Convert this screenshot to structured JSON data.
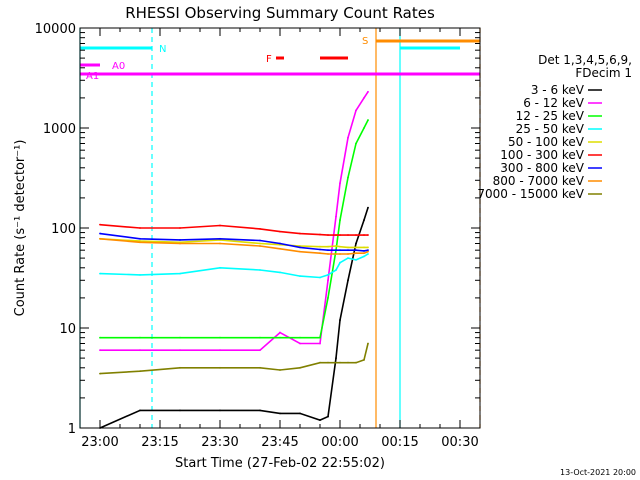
{
  "chart_data": {
    "type": "line",
    "title": "RHESSI Observing Summary Count Rates",
    "xlabel": "Start Time (27-Feb-02 22:55:02)",
    "ylabel": "Count Rate (s⁻¹ detector⁻¹)",
    "yscale": "log",
    "ylim": [
      1,
      10000
    ],
    "xlim": [
      "22:55",
      "00:35"
    ],
    "x_ticks": [
      "23:00",
      "23:15",
      "23:30",
      "23:45",
      "00:00",
      "00:15",
      "00:30"
    ],
    "y_ticks": [
      "1",
      "10",
      "100",
      "1000",
      "10000"
    ],
    "legend_title": [
      "Det 1,3,4,5,6,9,",
      "FDecim 1"
    ],
    "legend_position": "right",
    "timestamp": "13-Oct-2021 20:00",
    "x": [
      "23:00",
      "23:10",
      "23:20",
      "23:30",
      "23:40",
      "23:45",
      "23:50",
      "23:55",
      "23:57",
      "23:59",
      "00:00",
      "00:02",
      "00:04",
      "00:06",
      "00:07"
    ],
    "series": [
      {
        "name": "3 - 6 keV",
        "color": "#000000",
        "values": [
          1,
          1.5,
          1.5,
          1.5,
          1.5,
          1.4,
          1.4,
          1.2,
          1.3,
          5,
          12,
          30,
          70,
          120,
          160
        ]
      },
      {
        "name": "6 - 12 keV",
        "color": "#ff00ff",
        "values": [
          6,
          6,
          6,
          6,
          6,
          9,
          7,
          7,
          30,
          130,
          280,
          800,
          1500,
          2000,
          2300
        ]
      },
      {
        "name": "12 - 25 keV",
        "color": "#00ff00",
        "values": [
          8,
          8,
          8,
          8,
          8,
          8,
          8,
          8,
          20,
          60,
          120,
          320,
          700,
          1000,
          1200
        ]
      },
      {
        "name": "25 - 50 keV",
        "color": "#00ffff",
        "values": [
          35,
          34,
          35,
          40,
          38,
          36,
          33,
          32,
          34,
          38,
          45,
          50,
          48,
          52,
          55
        ]
      },
      {
        "name": "50 - 100 keV",
        "color": "#dddd00",
        "values": [
          78,
          74,
          72,
          76,
          70,
          68,
          66,
          65,
          65,
          66,
          65,
          64,
          64,
          64,
          64
        ]
      },
      {
        "name": "100 - 300 keV",
        "color": "#ff0000",
        "values": [
          108,
          100,
          100,
          106,
          98,
          92,
          88,
          86,
          85,
          85,
          85,
          85,
          85,
          85,
          85
        ]
      },
      {
        "name": "300 - 800 keV",
        "color": "#0000ff",
        "values": [
          88,
          78,
          76,
          78,
          75,
          70,
          64,
          61,
          60,
          60,
          60,
          60,
          60,
          59,
          60
        ]
      },
      {
        "name": "800 - 7000 keV",
        "color": "#ff8c00",
        "values": [
          78,
          72,
          70,
          70,
          66,
          62,
          58,
          56,
          55,
          55,
          55,
          55,
          56,
          56,
          58
        ]
      },
      {
        "name": "7000 - 15000 keV",
        "color": "#808000",
        "values": [
          3.5,
          3.7,
          4,
          4,
          4,
          3.8,
          4,
          4.5,
          4.5,
          4.5,
          4.5,
          4.5,
          4.5,
          4.8,
          7
        ]
      }
    ],
    "annotations": [
      {
        "label": "N",
        "color": "#00ffff",
        "segments": [
          [
            "22:55",
            "23:13"
          ],
          [
            "00:15",
            "00:30"
          ]
        ]
      },
      {
        "label": "A0",
        "color": "#ff00ff",
        "segments": [
          [
            "22:55",
            "23:00"
          ]
        ]
      },
      {
        "label": "A1",
        "color": "#ff00ff",
        "segments": [
          [
            "22:55",
            "00:35"
          ]
        ]
      },
      {
        "label": "F",
        "color": "#ff0000",
        "segments": [
          [
            "23:44",
            "23:46"
          ],
          [
            "23:55",
            "00:02"
          ]
        ]
      },
      {
        "label": "S",
        "color": "#ff8c00",
        "segments": [
          [
            "00:09",
            "00:35"
          ]
        ]
      }
    ],
    "vertical_lines": [
      {
        "time": "22:55",
        "color": "#00ffff",
        "style": "solid"
      },
      {
        "time": "23:13",
        "color": "#00ffff",
        "style": "dashed"
      },
      {
        "time": "00:09",
        "color": "#ff8c00",
        "style": "solid"
      },
      {
        "time": "00:15",
        "color": "#00ffff",
        "style": "solid"
      },
      {
        "time": "00:35",
        "color": "#ff8c00",
        "style": "dashed"
      }
    ]
  }
}
